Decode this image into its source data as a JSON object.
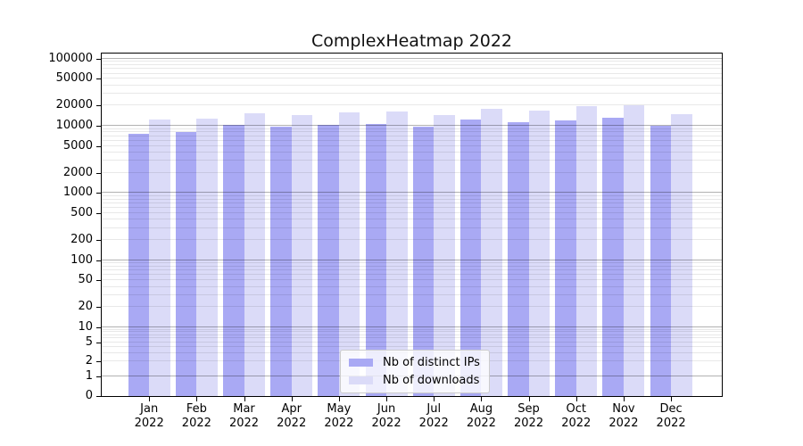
{
  "chart_data": {
    "type": "bar",
    "title": "ComplexHeatmap 2022",
    "year_label": "2022",
    "categories": [
      "Jan",
      "Feb",
      "Mar",
      "Apr",
      "May",
      "Jun",
      "Jul",
      "Aug",
      "Sep",
      "Oct",
      "Nov",
      "Dec"
    ],
    "series": [
      {
        "name": "Nb of distinct IPs",
        "color": "#a9a9f4",
        "values": [
          7700,
          8000,
          10400,
          9700,
          10200,
          10600,
          9700,
          12500,
          11300,
          12100,
          13400,
          9900
        ]
      },
      {
        "name": "Nb of downloads",
        "color": "#dbdbf8",
        "values": [
          12400,
          12800,
          15600,
          14700,
          15900,
          16300,
          14700,
          18100,
          17000,
          19600,
          20500,
          14900
        ]
      }
    ],
    "y_axis": {
      "scale": "symlog",
      "ticks": [
        {
          "value": 0,
          "label": "0"
        },
        {
          "value": 1,
          "label": "1"
        },
        {
          "value": 2,
          "label": "2"
        },
        {
          "value": 5,
          "label": "5"
        },
        {
          "value": 10,
          "label": "10"
        },
        {
          "value": 20,
          "label": "20"
        },
        {
          "value": 50,
          "label": "50"
        },
        {
          "value": 100,
          "label": "100"
        },
        {
          "value": 200,
          "label": "200"
        },
        {
          "value": 500,
          "label": "500"
        },
        {
          "value": 1000,
          "label": "1000"
        },
        {
          "value": 2000,
          "label": "2000"
        },
        {
          "value": 5000,
          "label": "5000"
        },
        {
          "value": 10000,
          "label": "10000"
        },
        {
          "value": 20000,
          "label": "20000"
        },
        {
          "value": 50000,
          "label": "50000"
        },
        {
          "value": 100000,
          "label": "100000"
        }
      ],
      "ylim": [
        0,
        123000
      ]
    },
    "grid": "horizontal",
    "legend_position": "lower center"
  },
  "colors": {
    "major_grid": "#b0b0b0",
    "minor_grid": "#e8e8e8",
    "spine": "#000000",
    "background": "#ffffff"
  }
}
